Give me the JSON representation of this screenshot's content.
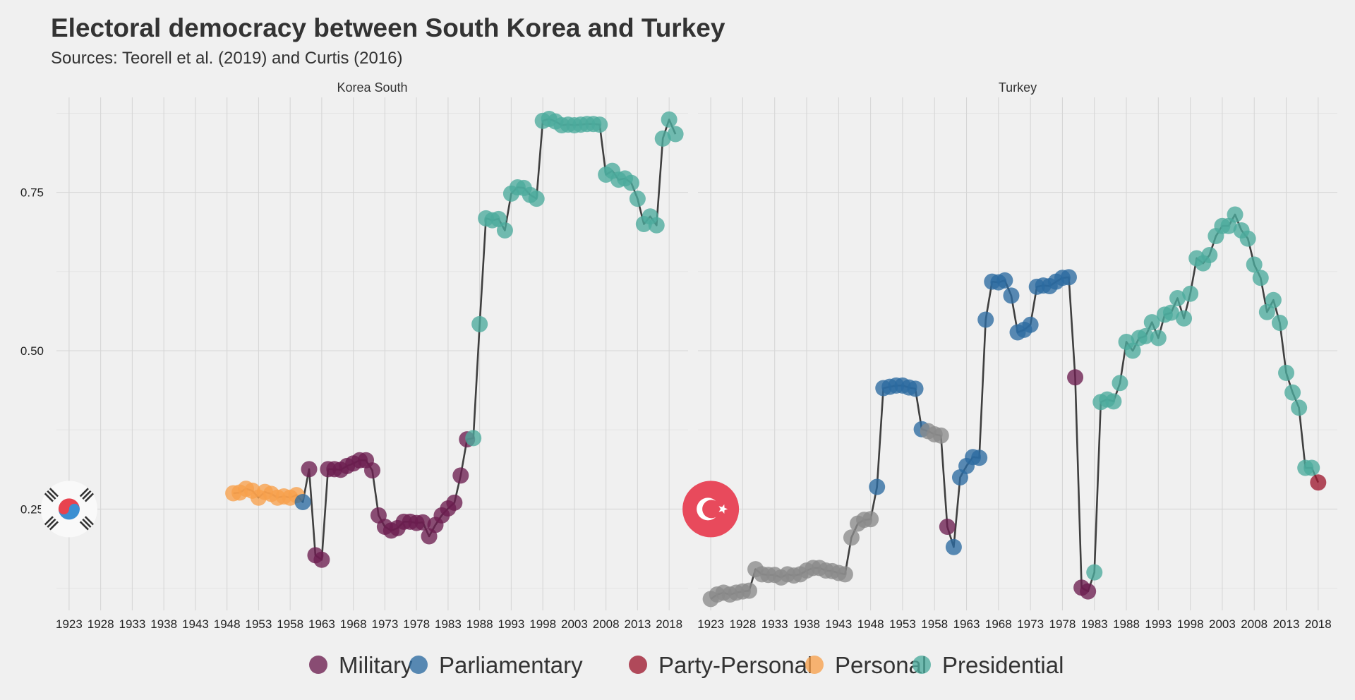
{
  "chart_data": {
    "type": "scatter",
    "title": "Electoral democracy between South Korea and Turkey",
    "subtitle": "Sources: Teorell et al. (2019) and Curtis (2016)",
    "xlabel": "",
    "ylabel": "",
    "xlim": [
      1921,
      2021
    ],
    "ylim": [
      0.09,
      0.9
    ],
    "x_ticks": [
      1923,
      1928,
      1933,
      1938,
      1943,
      1948,
      1953,
      1958,
      1963,
      1968,
      1973,
      1978,
      1983,
      1988,
      1993,
      1998,
      2003,
      2008,
      2013,
      2018
    ],
    "x_tick_labels": [
      "1923",
      "1928",
      "1933",
      "1938",
      "1943",
      "1948",
      "1953",
      "1958",
      "1963",
      "1968",
      "1973",
      "1978",
      "1983",
      "1988",
      "1993",
      "1998",
      "2003",
      "2008",
      "2013",
      "2018"
    ],
    "y_ticks": [
      0.25,
      0.5,
      0.75
    ],
    "y_tick_labels": [
      "0.25",
      "0.50",
      "0.75"
    ],
    "legend_position": "bottom",
    "regime_colors": {
      "Military": "#6b1d4f",
      "Parliamentary": "#2c6aa0",
      "Party-Personal": "#9e1a30",
      "Personal": "#f7a04b",
      "Presidential": "#4bab9c",
      "Other": "#8a8a8a"
    },
    "legend": [
      "Military",
      "Parliamentary",
      "Party-Personal",
      "Personal",
      "Presidential"
    ],
    "panels": [
      {
        "name": "Korea South",
        "flag": "korea-flag",
        "flag_colors": {
          "disc": "#f9f9f9",
          "red": "#e8434f",
          "blue": "#3b8fd2",
          "bars": "#333333"
        },
        "points": [
          [
            1949,
            0.275,
            "Personal"
          ],
          [
            1950,
            0.276,
            "Personal"
          ],
          [
            1951,
            0.282,
            "Personal"
          ],
          [
            1952,
            0.279,
            "Personal"
          ],
          [
            1953,
            0.268,
            "Personal"
          ],
          [
            1954,
            0.277,
            "Personal"
          ],
          [
            1955,
            0.274,
            "Personal"
          ],
          [
            1956,
            0.268,
            "Personal"
          ],
          [
            1957,
            0.27,
            "Personal"
          ],
          [
            1958,
            0.268,
            "Personal"
          ],
          [
            1959,
            0.272,
            "Personal"
          ],
          [
            1960,
            0.261,
            "Parliamentary"
          ],
          [
            1961,
            0.313,
            "Military"
          ],
          [
            1962,
            0.177,
            "Military"
          ],
          [
            1963,
            0.17,
            "Military"
          ],
          [
            1964,
            0.313,
            "Military"
          ],
          [
            1965,
            0.313,
            "Military"
          ],
          [
            1966,
            0.312,
            "Military"
          ],
          [
            1967,
            0.318,
            "Military"
          ],
          [
            1968,
            0.322,
            "Military"
          ],
          [
            1969,
            0.327,
            "Military"
          ],
          [
            1970,
            0.327,
            "Military"
          ],
          [
            1971,
            0.311,
            "Military"
          ],
          [
            1972,
            0.24,
            "Military"
          ],
          [
            1973,
            0.222,
            "Military"
          ],
          [
            1974,
            0.216,
            "Military"
          ],
          [
            1975,
            0.22,
            "Military"
          ],
          [
            1976,
            0.23,
            "Military"
          ],
          [
            1977,
            0.23,
            "Military"
          ],
          [
            1978,
            0.228,
            "Military"
          ],
          [
            1979,
            0.229,
            "Military"
          ],
          [
            1980,
            0.207,
            "Military"
          ],
          [
            1981,
            0.225,
            "Military"
          ],
          [
            1982,
            0.24,
            "Military"
          ],
          [
            1983,
            0.251,
            "Military"
          ],
          [
            1984,
            0.26,
            "Military"
          ],
          [
            1985,
            0.303,
            "Military"
          ],
          [
            1986,
            0.36,
            "Military"
          ],
          [
            1987,
            0.362,
            "Presidential"
          ],
          [
            1988,
            0.542,
            "Presidential"
          ],
          [
            1989,
            0.709,
            "Presidential"
          ],
          [
            1990,
            0.706,
            "Presidential"
          ],
          [
            1991,
            0.708,
            "Presidential"
          ],
          [
            1992,
            0.69,
            "Presidential"
          ],
          [
            1993,
            0.748,
            "Presidential"
          ],
          [
            1994,
            0.758,
            "Presidential"
          ],
          [
            1995,
            0.757,
            "Presidential"
          ],
          [
            1996,
            0.746,
            "Presidential"
          ],
          [
            1997,
            0.74,
            "Presidential"
          ],
          [
            1998,
            0.863,
            "Presidential"
          ],
          [
            1999,
            0.866,
            "Presidential"
          ],
          [
            2000,
            0.862,
            "Presidential"
          ],
          [
            2001,
            0.856,
            "Presidential"
          ],
          [
            2002,
            0.857,
            "Presidential"
          ],
          [
            2003,
            0.856,
            "Presidential"
          ],
          [
            2004,
            0.857,
            "Presidential"
          ],
          [
            2005,
            0.858,
            "Presidential"
          ],
          [
            2006,
            0.858,
            "Presidential"
          ],
          [
            2007,
            0.857,
            "Presidential"
          ],
          [
            2008,
            0.778,
            "Presidential"
          ],
          [
            2009,
            0.784,
            "Presidential"
          ],
          [
            2010,
            0.77,
            "Presidential"
          ],
          [
            2011,
            0.772,
            "Presidential"
          ],
          [
            2012,
            0.765,
            "Presidential"
          ],
          [
            2013,
            0.74,
            "Presidential"
          ],
          [
            2014,
            0.7,
            "Presidential"
          ],
          [
            2015,
            0.712,
            "Presidential"
          ],
          [
            2016,
            0.698,
            "Presidential"
          ],
          [
            2017,
            0.835,
            "Presidential"
          ],
          [
            2018,
            0.865,
            "Presidential"
          ],
          [
            2019,
            0.842,
            "Presidential"
          ]
        ]
      },
      {
        "name": "Turkey",
        "flag": "turkey-flag",
        "flag_colors": {
          "disc": "#e84a5c",
          "crescent": "#ffffff"
        },
        "points": [
          [
            1923,
            0.108,
            "Other"
          ],
          [
            1924,
            0.115,
            "Other"
          ],
          [
            1925,
            0.118,
            "Other"
          ],
          [
            1926,
            0.115,
            "Other"
          ],
          [
            1927,
            0.118,
            "Other"
          ],
          [
            1928,
            0.12,
            "Other"
          ],
          [
            1929,
            0.121,
            "Other"
          ],
          [
            1930,
            0.155,
            "Other"
          ],
          [
            1931,
            0.147,
            "Other"
          ],
          [
            1932,
            0.146,
            "Other"
          ],
          [
            1933,
            0.146,
            "Other"
          ],
          [
            1934,
            0.142,
            "Other"
          ],
          [
            1935,
            0.147,
            "Other"
          ],
          [
            1936,
            0.145,
            "Other"
          ],
          [
            1937,
            0.147,
            "Other"
          ],
          [
            1938,
            0.153,
            "Other"
          ],
          [
            1939,
            0.157,
            "Other"
          ],
          [
            1940,
            0.157,
            "Other"
          ],
          [
            1941,
            0.153,
            "Other"
          ],
          [
            1942,
            0.152,
            "Other"
          ],
          [
            1943,
            0.149,
            "Other"
          ],
          [
            1944,
            0.147,
            "Other"
          ],
          [
            1945,
            0.205,
            "Other"
          ],
          [
            1946,
            0.227,
            "Other"
          ],
          [
            1947,
            0.233,
            "Other"
          ],
          [
            1948,
            0.234,
            "Other"
          ],
          [
            1949,
            0.285,
            "Parliamentary"
          ],
          [
            1950,
            0.441,
            "Parliamentary"
          ],
          [
            1951,
            0.443,
            "Parliamentary"
          ],
          [
            1952,
            0.445,
            "Parliamentary"
          ],
          [
            1953,
            0.445,
            "Parliamentary"
          ],
          [
            1954,
            0.442,
            "Parliamentary"
          ],
          [
            1955,
            0.44,
            "Parliamentary"
          ],
          [
            1956,
            0.376,
            "Parliamentary"
          ],
          [
            1957,
            0.373,
            "Other"
          ],
          [
            1958,
            0.368,
            "Other"
          ],
          [
            1959,
            0.366,
            "Other"
          ],
          [
            1960,
            0.222,
            "Military"
          ],
          [
            1961,
            0.19,
            "Parliamentary"
          ],
          [
            1962,
            0.3,
            "Parliamentary"
          ],
          [
            1963,
            0.318,
            "Parliamentary"
          ],
          [
            1964,
            0.332,
            "Parliamentary"
          ],
          [
            1965,
            0.331,
            "Parliamentary"
          ],
          [
            1966,
            0.549,
            "Parliamentary"
          ],
          [
            1967,
            0.609,
            "Parliamentary"
          ],
          [
            1968,
            0.608,
            "Parliamentary"
          ],
          [
            1969,
            0.611,
            "Parliamentary"
          ],
          [
            1970,
            0.587,
            "Parliamentary"
          ],
          [
            1971,
            0.529,
            "Parliamentary"
          ],
          [
            1972,
            0.533,
            "Parliamentary"
          ],
          [
            1973,
            0.541,
            "Parliamentary"
          ],
          [
            1974,
            0.601,
            "Parliamentary"
          ],
          [
            1975,
            0.603,
            "Parliamentary"
          ],
          [
            1976,
            0.602,
            "Parliamentary"
          ],
          [
            1977,
            0.609,
            "Parliamentary"
          ],
          [
            1978,
            0.615,
            "Parliamentary"
          ],
          [
            1979,
            0.616,
            "Parliamentary"
          ],
          [
            1980,
            0.458,
            "Military"
          ],
          [
            1981,
            0.126,
            "Military"
          ],
          [
            1982,
            0.12,
            "Military"
          ],
          [
            1983,
            0.15,
            "Presidential"
          ],
          [
            1984,
            0.419,
            "Presidential"
          ],
          [
            1985,
            0.423,
            "Presidential"
          ],
          [
            1986,
            0.42,
            "Presidential"
          ],
          [
            1987,
            0.449,
            "Presidential"
          ],
          [
            1988,
            0.514,
            "Presidential"
          ],
          [
            1989,
            0.5,
            "Presidential"
          ],
          [
            1990,
            0.52,
            "Presidential"
          ],
          [
            1991,
            0.523,
            "Presidential"
          ],
          [
            1992,
            0.545,
            "Presidential"
          ],
          [
            1993,
            0.52,
            "Presidential"
          ],
          [
            1994,
            0.557,
            "Presidential"
          ],
          [
            1995,
            0.56,
            "Presidential"
          ],
          [
            1996,
            0.583,
            "Presidential"
          ],
          [
            1997,
            0.551,
            "Presidential"
          ],
          [
            1998,
            0.59,
            "Presidential"
          ],
          [
            1999,
            0.646,
            "Presidential"
          ],
          [
            2000,
            0.638,
            "Presidential"
          ],
          [
            2001,
            0.651,
            "Presidential"
          ],
          [
            2002,
            0.681,
            "Presidential"
          ],
          [
            2003,
            0.697,
            "Presidential"
          ],
          [
            2004,
            0.697,
            "Presidential"
          ],
          [
            2005,
            0.715,
            "Presidential"
          ],
          [
            2006,
            0.69,
            "Presidential"
          ],
          [
            2007,
            0.677,
            "Presidential"
          ],
          [
            2008,
            0.636,
            "Presidential"
          ],
          [
            2009,
            0.615,
            "Presidential"
          ],
          [
            2010,
            0.561,
            "Presidential"
          ],
          [
            2011,
            0.58,
            "Presidential"
          ],
          [
            2012,
            0.544,
            "Presidential"
          ],
          [
            2013,
            0.465,
            "Presidential"
          ],
          [
            2014,
            0.434,
            "Presidential"
          ],
          [
            2015,
            0.41,
            "Presidential"
          ],
          [
            2016,
            0.315,
            "Presidential"
          ],
          [
            2017,
            0.315,
            "Presidential"
          ],
          [
            2018,
            0.292,
            "Party-Personal"
          ]
        ]
      }
    ]
  }
}
